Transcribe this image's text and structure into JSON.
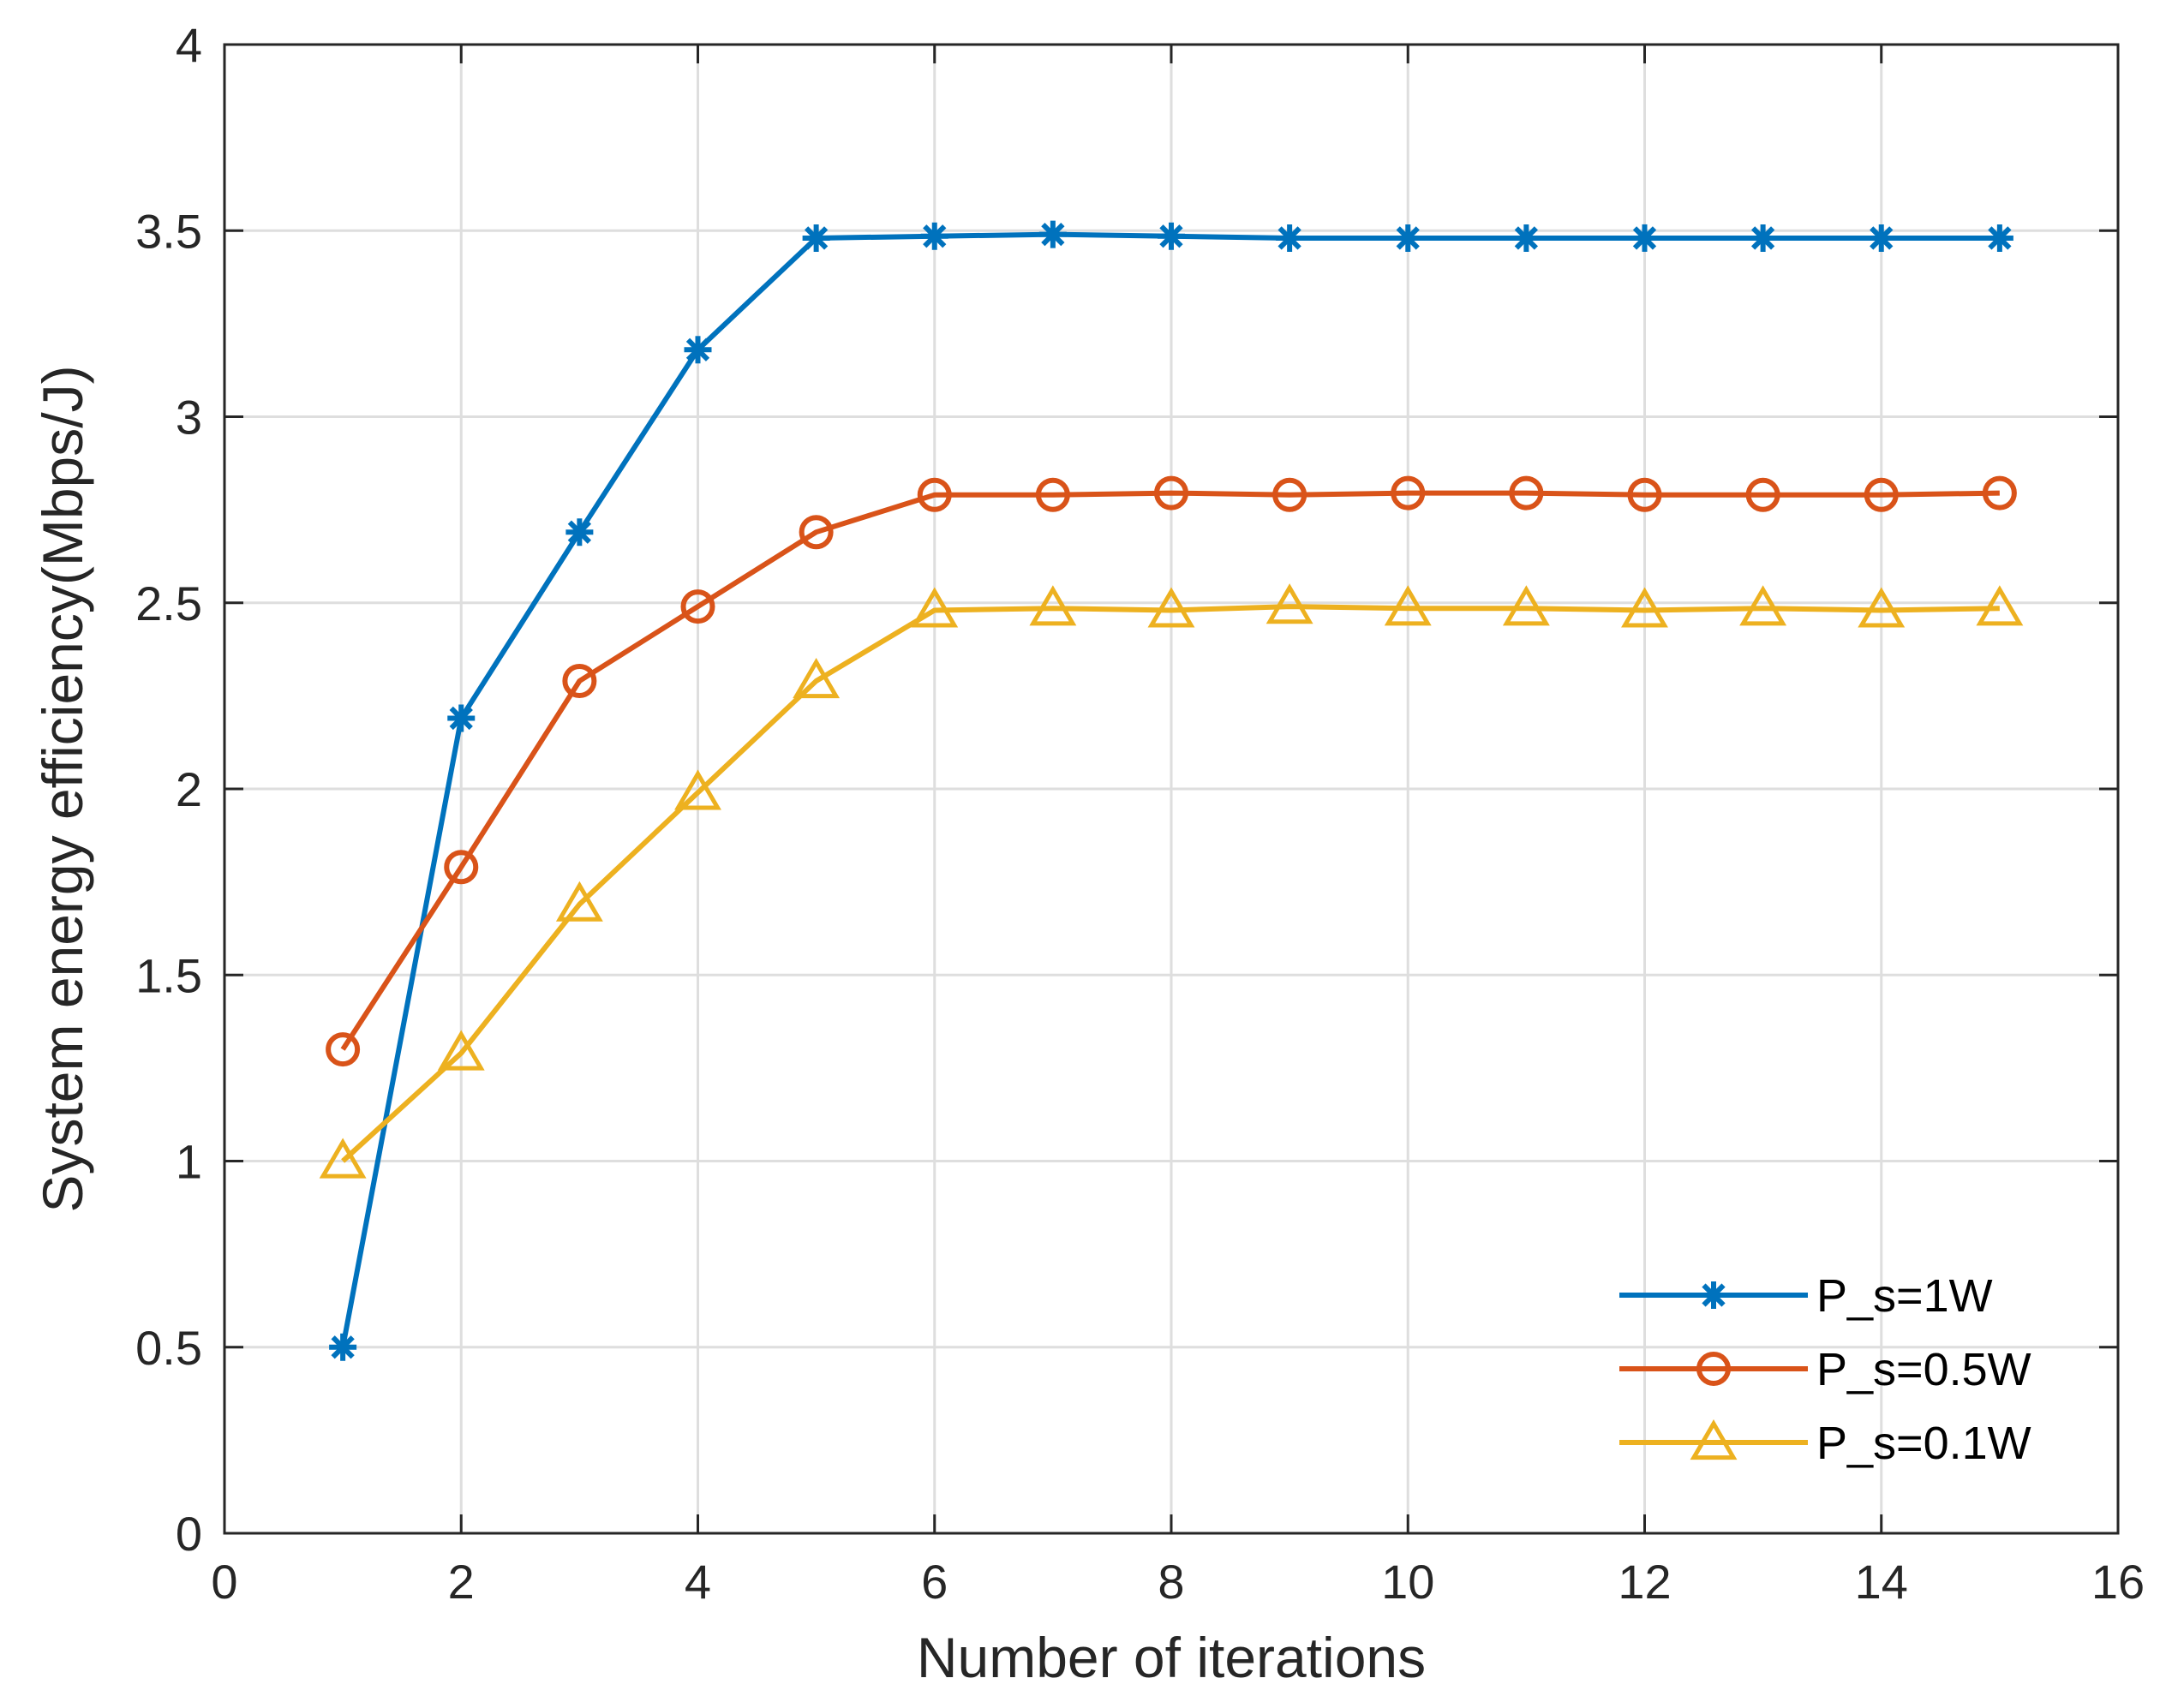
{
  "chart_data": {
    "type": "line",
    "title": "",
    "xlabel": "Number of iterations",
    "ylabel": "System energy efficiency(Mbps/J)",
    "xlim": [
      0,
      16
    ],
    "ylim": [
      0,
      4
    ],
    "xticks": [
      0,
      2,
      4,
      6,
      8,
      10,
      12,
      14,
      16
    ],
    "yticks": [
      0,
      0.5,
      1,
      1.5,
      2,
      2.5,
      3,
      3.5,
      4
    ],
    "xtick_labels": [
      "0",
      "2",
      "4",
      "6",
      "8",
      "10",
      "12",
      "14",
      "16"
    ],
    "ytick_labels": [
      "0",
      "0.5",
      "1",
      "1.5",
      "2",
      "2.5",
      "3",
      "3.5",
      "4"
    ],
    "grid": true,
    "legend_position": "bottom-right",
    "x": [
      1,
      2,
      3,
      4,
      5,
      6,
      7,
      8,
      9,
      10,
      11,
      12,
      13,
      14,
      15
    ],
    "series": [
      {
        "name": "P_s=1W",
        "color": "#0072BD",
        "marker": "asterisk",
        "values": [
          0.5,
          2.19,
          2.69,
          3.18,
          3.48,
          3.485,
          3.49,
          3.485,
          3.48,
          3.48,
          3.48,
          3.48,
          3.48,
          3.48,
          3.48
        ]
      },
      {
        "name": "P_s=0.5W",
        "color": "#D95319",
        "marker": "circle",
        "values": [
          1.3,
          1.79,
          2.29,
          2.49,
          2.69,
          2.79,
          2.79,
          2.795,
          2.79,
          2.795,
          2.795,
          2.79,
          2.79,
          2.79,
          2.795
        ]
      },
      {
        "name": "P_s=0.1W",
        "color": "#EDB120",
        "marker": "triangle",
        "values": [
          1.0,
          1.29,
          1.69,
          1.99,
          2.29,
          2.48,
          2.485,
          2.48,
          2.49,
          2.485,
          2.485,
          2.48,
          2.485,
          2.48,
          2.485
        ]
      }
    ]
  }
}
